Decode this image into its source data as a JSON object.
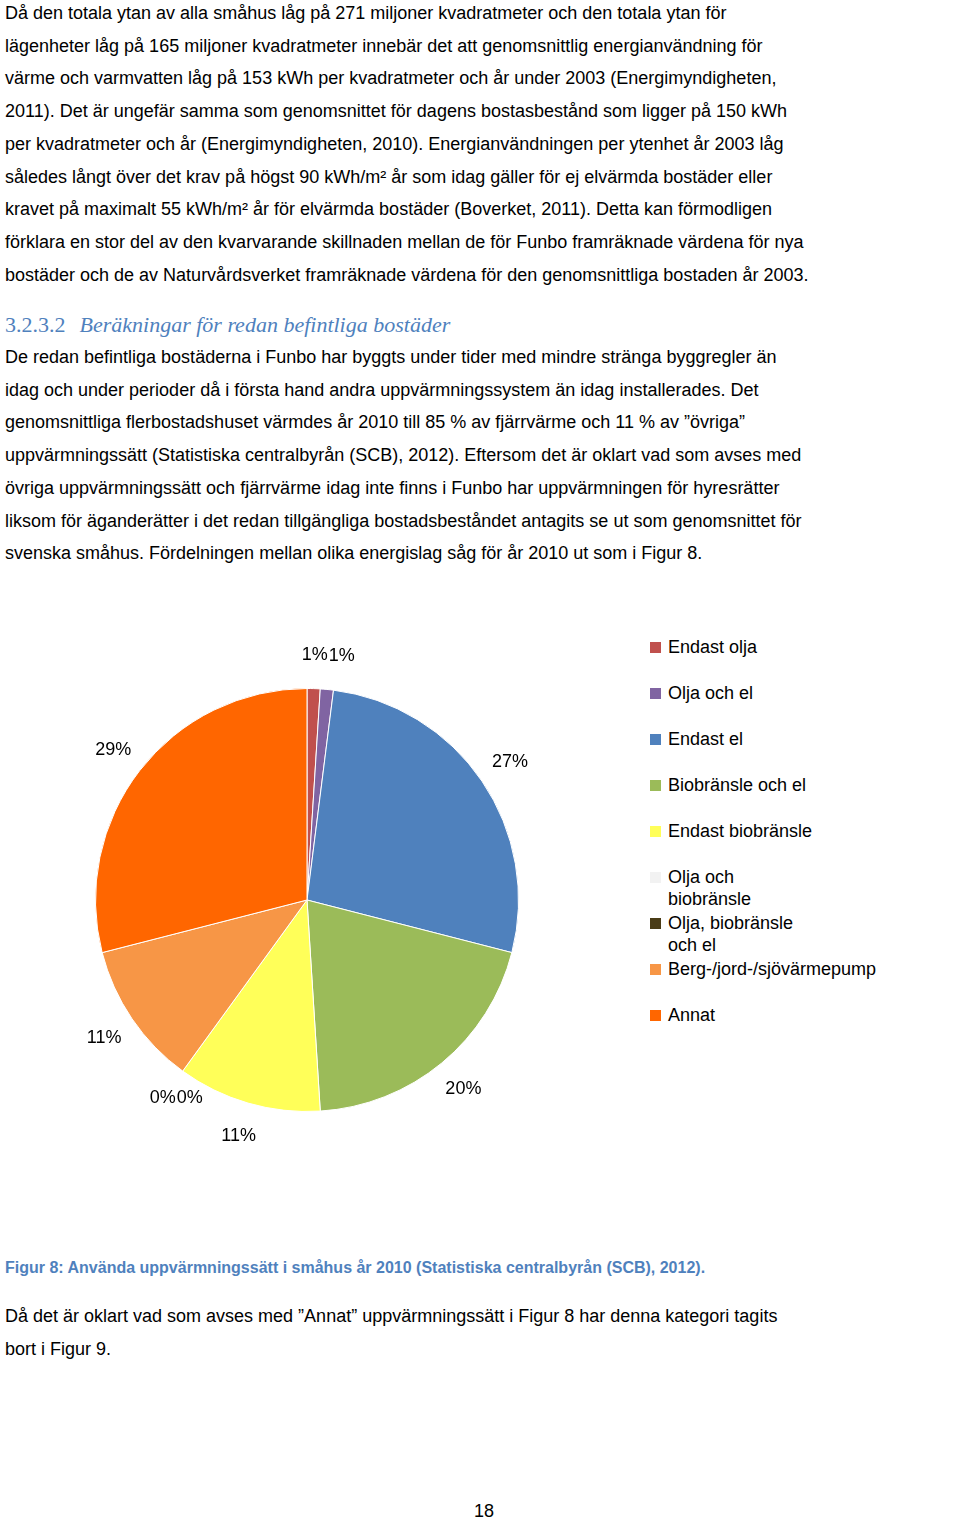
{
  "paragraph_1": {
    "lines": [
      "Då den totala ytan av alla småhus låg på 271 miljoner kvadratmeter och den totala ytan för",
      "lägenheter låg på 165 miljoner kvadratmeter innebär det att genomsnittlig energianvändning för",
      "värme och varmvatten låg på 153 kWh per kvadratmeter och år under 2003 (Energimyndigheten,",
      "2011). Det är ungefär samma som genomsnittet för dagens bostasbestånd som ligger på 150 kWh",
      "per kvadratmeter och år (Energimyndigheten, 2010). Energianvändningen per ytenhet år 2003 låg",
      "således långt över det krav på högst 90 kWh/m² år som idag gäller för ej elvärmda bostäder eller",
      "kravet på maximalt 55 kWh/m² år för elvärmda bostäder (Boverket, 2011). Detta kan förmodligen",
      "förklara en stor del av den kvarvarande skillnaden mellan de för Funbo framräknade värdena för nya",
      "bostäder och de av Naturvårdsverket framräknade värdena för den genomsnittliga bostaden år 2003."
    ]
  },
  "heading": {
    "number": "3.2.3.2",
    "title": "Beräkningar för redan befintliga bostäder"
  },
  "paragraph_2": {
    "lines": [
      "De redan befintliga bostäderna i Funbo har byggts under tider med mindre stränga byggregler än",
      "idag och under perioder då i första hand andra uppvärmningssystem än idag installerades. Det",
      "genomsnittliga flerbostadshuset värmdes år 2010 till 85 % av fjärrvärme och 11 % av ”övriga”",
      "uppvärmningssätt (Statistiska centralbyrån (SCB), 2012). Eftersom det är oklart vad som avses med",
      "övriga uppvärmningssätt och fjärrvärme idag inte finns i Funbo har uppvärmningen för hyresrätter",
      "liksom för äganderätter i det redan tillgängliga bostadsbeståndet antagits se ut som genomsnittet för",
      "svenska småhus. Fördelningen mellan olika energislag såg för år 2010 ut som i Figur 8."
    ]
  },
  "chart_data": {
    "type": "pie",
    "categories": [
      "Endast olja",
      "Olja och el",
      "Endast el",
      "Biobränsle och el",
      "Endast biobränsle",
      "Olja och biobränsle",
      "Olja, biobränsle och el",
      "Berg-/jord-/sjövärmepump",
      "Annat"
    ],
    "values": [
      1,
      1,
      27,
      20,
      11,
      0,
      0,
      11,
      29
    ],
    "value_labels": [
      "1%",
      "1%",
      "27%",
      "20%",
      "11%",
      "0%",
      "0%",
      "11%",
      "29%"
    ],
    "colors": [
      "#c0504d",
      "#8064a2",
      "#4f81bd",
      "#9bbb59",
      "#ffff59",
      "#f2f2f2",
      "#4a3c17",
      "#f79646",
      "#ff6600"
    ],
    "data_labels": true,
    "legend": "right"
  },
  "caption": "Figur 8: Använda uppvärmningssätt i småhus år 2010 (Statistiska centralbyrån (SCB), 2012).",
  "paragraph_3": {
    "lines": [
      "Då det är oklart vad som avses med ”Annat” uppvärmningssätt i Figur 8 har denna kategori tagits",
      "bort i Figur 9."
    ]
  },
  "page_number": 18
}
